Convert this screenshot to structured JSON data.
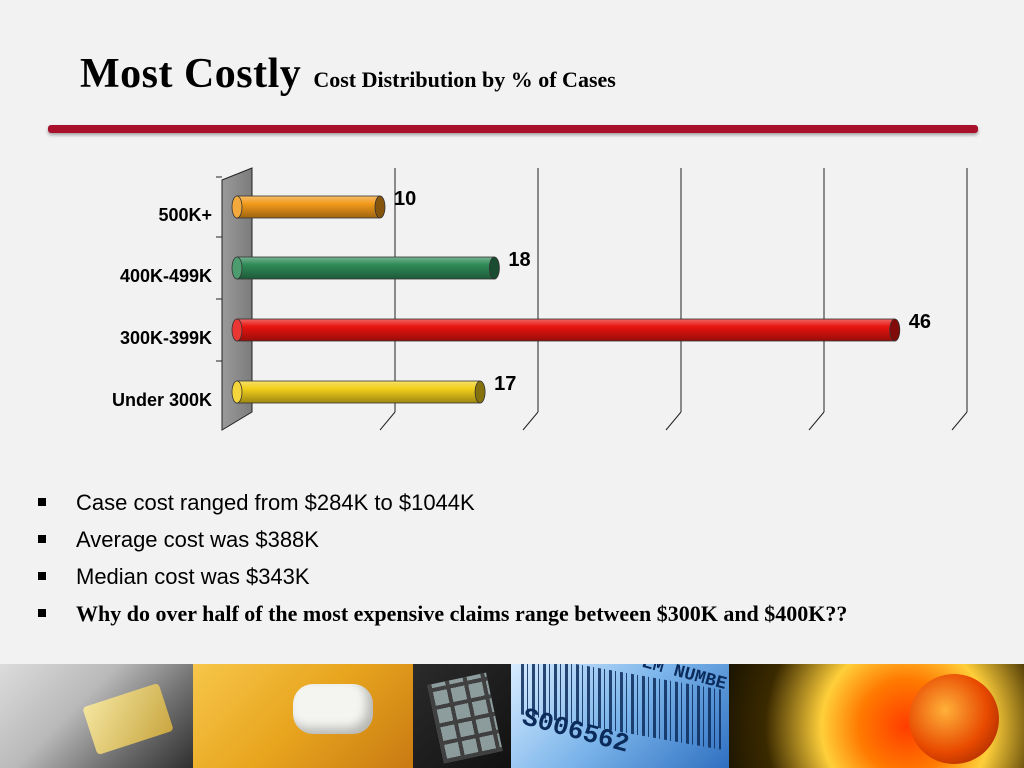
{
  "slide": {
    "title_main": "Most Costly",
    "title_sub": "Cost Distribution by % of Cases"
  },
  "chart_data": {
    "type": "bar",
    "orientation": "horizontal",
    "categories": [
      "500K+",
      "400K-499K",
      "300K-399K",
      "Under 300K"
    ],
    "values": [
      10,
      18,
      46,
      17
    ],
    "bar_colors": [
      "#f29a1a",
      "#2e8b57",
      "#e8140f",
      "#f2cf1a"
    ],
    "xlim": [
      0,
      50
    ],
    "grid": true,
    "data_labels": true,
    "legend": "none"
  },
  "bullets": [
    {
      "text": "Case cost ranged from $284K to $1044K",
      "bold": false
    },
    {
      "text": "Average cost was $388K",
      "bold": false
    },
    {
      "text": "Median cost was $343K",
      "bold": false
    },
    {
      "text": "Why do over half of the most expensive claims range between $300K and $400K??",
      "bold": true
    }
  ],
  "photo_strip": {
    "barcode_text_1": "EM NUMBE",
    "barcode_text_2": "S006562"
  }
}
